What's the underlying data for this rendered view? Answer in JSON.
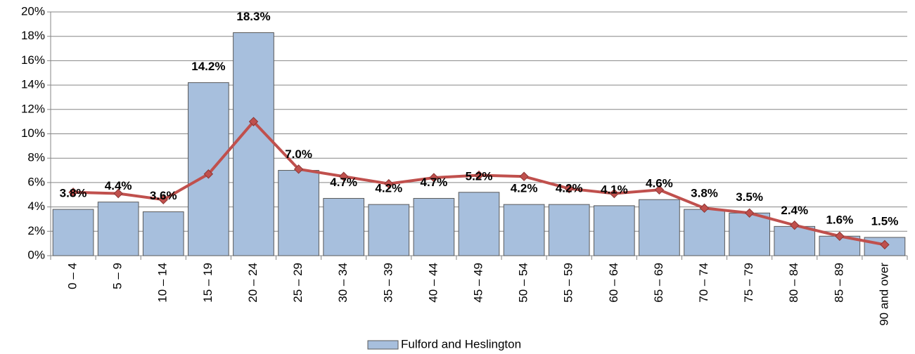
{
  "chart_data": {
    "type": "bar",
    "categories": [
      "0 – 4",
      "5 – 9",
      "10 – 14",
      "15 – 19",
      "20 – 24",
      "25 – 29",
      "30 – 34",
      "35 – 39",
      "40 – 44",
      "45 – 49",
      "50 – 54",
      "55 – 59",
      "60 – 64",
      "65 – 69",
      "70 – 74",
      "75 – 79",
      "80 – 84",
      "85 – 89",
      "90 and over"
    ],
    "series": [
      {
        "name": "Fulford and Heslington",
        "type": "bar",
        "color": "#a7bfdd",
        "values": [
          3.8,
          4.4,
          3.6,
          14.2,
          18.3,
          7.0,
          4.7,
          4.2,
          4.7,
          5.2,
          4.2,
          4.2,
          4.1,
          4.6,
          3.8,
          3.5,
          2.4,
          1.6,
          1.5
        ],
        "value_labels": [
          "3.8%",
          "4.4%",
          "3.6%",
          "14.2%",
          "18.3%",
          "7.0%",
          "4.7%",
          "4.2%",
          "4.7%",
          "5.2%",
          "4.2%",
          "4.2%",
          "4.1%",
          "4.6%",
          "3.8%",
          "3.5%",
          "2.4%",
          "1.6%",
          "1.5%"
        ]
      },
      {
        "type": "line",
        "color": "#c0504d",
        "values": [
          5.2,
          5.1,
          4.6,
          6.7,
          11.0,
          7.1,
          6.5,
          5.9,
          6.4,
          6.6,
          6.5,
          5.5,
          5.1,
          5.4,
          3.9,
          3.5,
          2.5,
          1.6,
          0.9
        ]
      }
    ],
    "ylim": [
      0,
      20
    ],
    "yticks": [
      {
        "value": 0,
        "label": "0%"
      },
      {
        "value": 2,
        "label": "2%"
      },
      {
        "value": 4,
        "label": "4%"
      },
      {
        "value": 6,
        "label": "6%"
      },
      {
        "value": 8,
        "label": "8%"
      },
      {
        "value": 10,
        "label": "10%"
      },
      {
        "value": 12,
        "label": "12%"
      },
      {
        "value": 14,
        "label": "14%"
      },
      {
        "value": 16,
        "label": "16%"
      },
      {
        "value": 18,
        "label": "18%"
      },
      {
        "value": 20,
        "label": "20%"
      }
    ],
    "grid": true,
    "legend": "bottom"
  }
}
